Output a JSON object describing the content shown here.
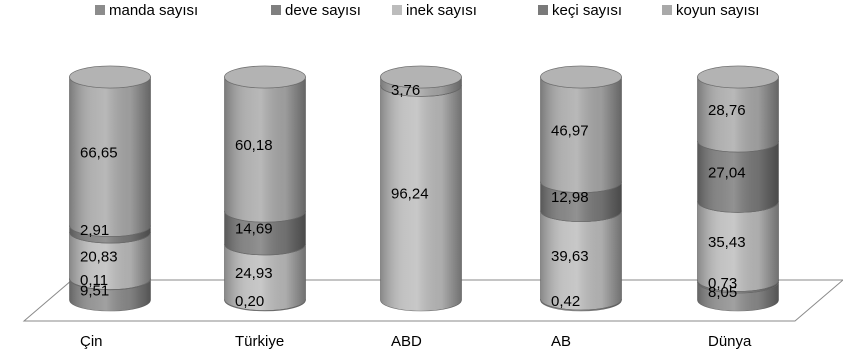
{
  "chart_data": {
    "type": "bar",
    "stacked": true,
    "percent_stacked": true,
    "style": "3d-cylinder",
    "grid": false,
    "legend_position": "top",
    "categories": [
      "Çin",
      "Türkiye",
      "ABD",
      "AB",
      "Dünya"
    ],
    "series": [
      {
        "name": "manda sayısı",
        "color": "#8c8c8c",
        "values": [
          9.51,
          0.2,
          0,
          0.42,
          8.05
        ],
        "labels": [
          "9,51",
          "0,20",
          "",
          "0,42",
          "8,05"
        ]
      },
      {
        "name": "deve sayısı",
        "color": "#7f7f7f",
        "values": [
          0.11,
          0,
          0,
          0,
          0.73
        ],
        "labels": [
          "0,11",
          "",
          "",
          "",
          "0,73"
        ]
      },
      {
        "name": "inek sayısı",
        "color": "#bcbcbc",
        "values": [
          20.83,
          24.93,
          96.24,
          39.63,
          35.43
        ],
        "labels": [
          "20,83",
          "24,93",
          "96,24",
          "39,63",
          "35,43"
        ]
      },
      {
        "name": "keçi sayısı",
        "color": "#7a7a7a",
        "values": [
          2.91,
          14.69,
          0,
          12.98,
          27.04
        ],
        "labels": [
          "2,91",
          "14,69",
          "",
          "12,98",
          "27,04"
        ]
      },
      {
        "name": "koyun sayısı",
        "color": "#a9a9a9",
        "values": [
          66.65,
          60.18,
          3.76,
          46.97,
          28.76
        ],
        "labels": [
          "66,65",
          "60,18",
          "3,76",
          "46,97",
          "28,76"
        ]
      }
    ],
    "ylim": [
      0,
      100
    ]
  }
}
